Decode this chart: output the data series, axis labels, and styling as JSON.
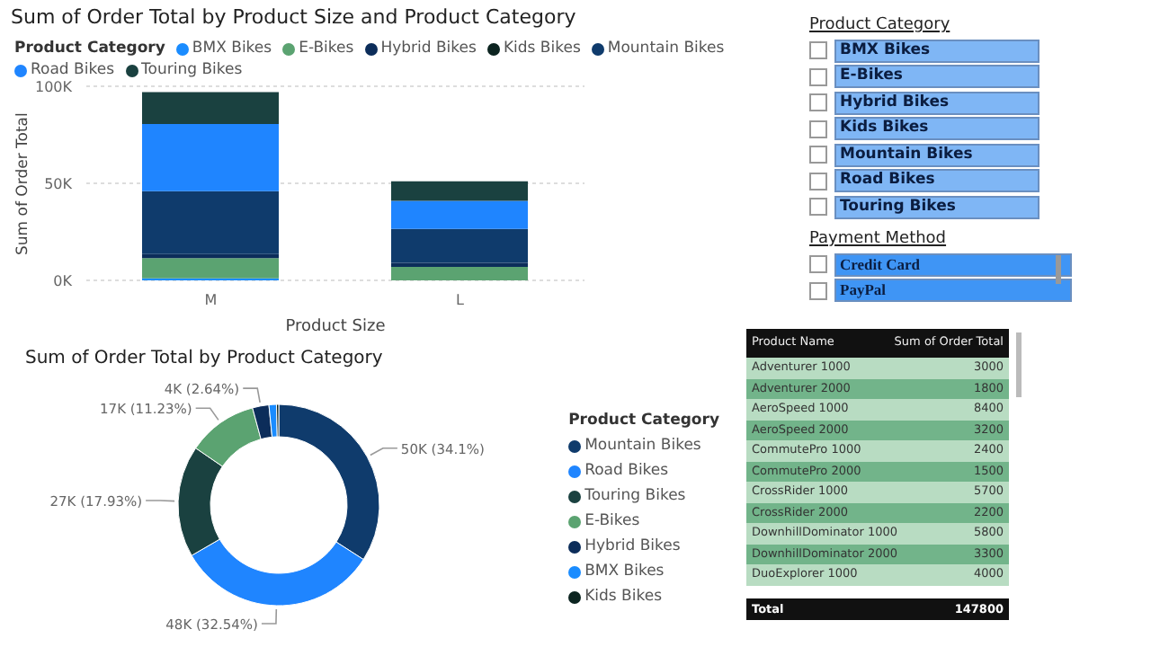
{
  "chart_data": [
    {
      "type": "bar",
      "title": "Sum of Order Total by Product Size and Product Category",
      "xlabel": "Product Size",
      "ylabel": "Sum of Order Total",
      "legend_title": "Product Category",
      "categories": [
        "M",
        "L"
      ],
      "stacked": true,
      "legend": "top",
      "grid": "y",
      "ylim": [
        0,
        100000
      ],
      "yticks": [
        {
          "value": 0,
          "label": "0K"
        },
        {
          "value": 50000,
          "label": "50K"
        },
        {
          "value": 100000,
          "label": "100K"
        }
      ],
      "series": [
        {
          "name": "BMX Bikes",
          "color": "#1a8cff",
          "values": [
            1000,
            0
          ]
        },
        {
          "name": "E-Bikes",
          "color": "#5ba371",
          "values": [
            10500,
            7000
          ]
        },
        {
          "name": "Hybrid Bikes",
          "color": "#0c2d5a",
          "values": [
            2000,
            2000
          ]
        },
        {
          "name": "Kids Bikes",
          "color": "#0c2420",
          "values": [
            0,
            0
          ]
        },
        {
          "name": "Mountain Bikes",
          "color": "#0f3b6c",
          "values": [
            32500,
            17500
          ]
        },
        {
          "name": "Road Bikes",
          "color": "#1f85ff",
          "values": [
            34500,
            14500
          ]
        },
        {
          "name": "Touring Bikes",
          "color": "#1a4140",
          "values": [
            16500,
            10000
          ]
        }
      ]
    },
    {
      "type": "donut",
      "title": "Sum of Order Total by Product Category",
      "legend_title": "Product Category",
      "legend": "right",
      "categories": [
        "Mountain Bikes",
        "Road Bikes",
        "Touring Bikes",
        "E-Bikes",
        "Hybrid Bikes",
        "BMX Bikes",
        "Kids Bikes"
      ],
      "values": [
        34.1,
        32.54,
        17.93,
        11.23,
        2.64,
        1.2,
        0.36
      ],
      "value_labels": [
        "50K (34.1%)",
        "48K (32.54%)",
        "27K (17.93%)",
        "17K (11.23%)",
        "4K (2.64%)",
        null,
        null
      ],
      "colors": [
        "#0f3b6c",
        "#1f85ff",
        "#1a4140",
        "#5ba371",
        "#0c2d5a",
        "#1a8cff",
        "#0c2420"
      ]
    },
    {
      "type": "other",
      "title": "Product Category",
      "categories": [
        "BMX Bikes",
        "E-Bikes",
        "Hybrid Bikes",
        "Kids Bikes",
        "Mountain Bikes",
        "Road Bikes",
        "Touring Bikes"
      ]
    },
    {
      "type": "other",
      "title": "Payment Method",
      "categories": [
        "Credit Card",
        "PayPal"
      ]
    },
    {
      "type": "other",
      "data_labels": true,
      "xlabel": "Product Name",
      "ylabel": "Sum of Order Total",
      "categories": [
        "Adventurer 1000",
        "Adventurer 2000",
        "AeroSpeed 1000",
        "AeroSpeed 2000",
        "CommutePro 1000",
        "CommutePro 2000",
        "CrossRider 1000",
        "CrossRider 2000",
        "DownhillDominator 1000",
        "DownhillDominator 2000",
        "DuoExplorer 1000"
      ],
      "values": [
        3000,
        1800,
        8400,
        3200,
        2400,
        1500,
        5700,
        2200,
        5800,
        3300,
        4000
      ],
      "annotations": [
        "Total",
        "147800"
      ]
    }
  ]
}
